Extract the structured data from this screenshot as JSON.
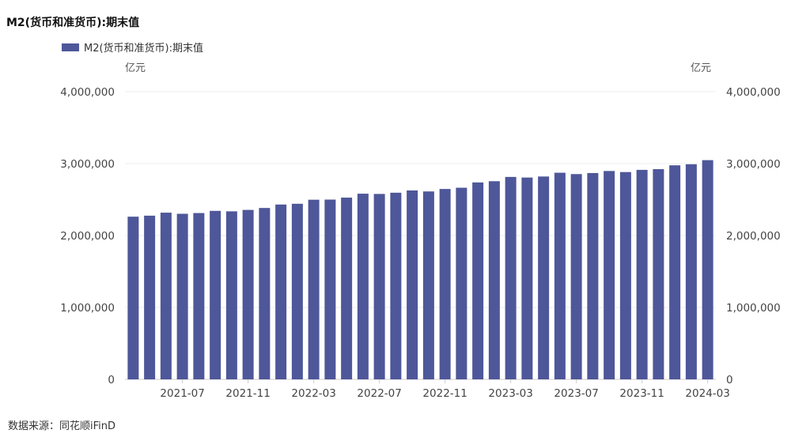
{
  "chart_data": {
    "type": "bar",
    "title": "M2(货币和准货币):期末值",
    "legend": [
      "M2(货币和准货币):期末值"
    ],
    "legend_position": "top-left",
    "unit_left": "亿元",
    "unit_right": "亿元",
    "ylim": [
      0,
      4000000
    ],
    "yticks": [
      "0",
      "1,000,000",
      "2,000,000",
      "3,000,000",
      "4,000,000"
    ],
    "grid": true,
    "color": "#4e5799",
    "xtick_labels": [
      "2021-07",
      "2021-11",
      "2022-03",
      "2022-07",
      "2022-11",
      "2023-03",
      "2023-07",
      "2023-11",
      "2024-03"
    ],
    "categories": [
      "2021-04",
      "2021-05",
      "2021-06",
      "2021-07",
      "2021-08",
      "2021-09",
      "2021-10",
      "2021-11",
      "2021-12",
      "2022-01",
      "2022-02",
      "2022-03",
      "2022-04",
      "2022-05",
      "2022-06",
      "2022-07",
      "2022-08",
      "2022-09",
      "2022-10",
      "2022-11",
      "2022-12",
      "2023-01",
      "2023-02",
      "2023-03",
      "2023-04",
      "2023-05",
      "2023-06",
      "2023-07",
      "2023-08",
      "2023-09",
      "2023-10",
      "2023-11",
      "2023-12",
      "2024-01",
      "2024-02",
      "2024-03"
    ],
    "values": [
      2262100,
      2276000,
      2317800,
      2302200,
      2312300,
      2342800,
      2336200,
      2356000,
      2382900,
      2431000,
      2441500,
      2497700,
      2499600,
      2527000,
      2581500,
      2578100,
      2595100,
      2626700,
      2612900,
      2647000,
      2664300,
      2738100,
      2755300,
      2814600,
      2806200,
      2820500,
      2873000,
      2854200,
      2868600,
      2897200,
      2882300,
      2912700,
      2922700,
      2976200,
      2991000,
      3047900
    ]
  },
  "source": "数据来源：同花顺iFinD"
}
